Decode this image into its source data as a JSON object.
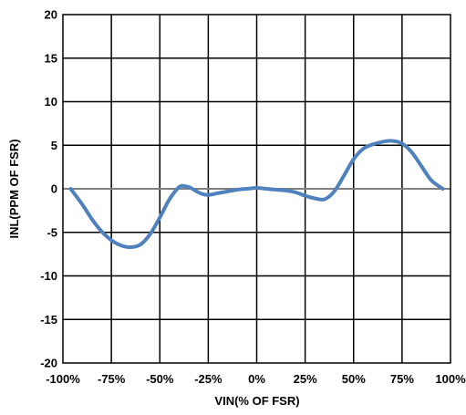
{
  "chart_data": {
    "type": "line",
    "title": "",
    "xlabel": "VIN(% OF FSR)",
    "ylabel": "INL(PPM OF FSR)",
    "xlim": [
      -100,
      100
    ],
    "ylim": [
      -20,
      20
    ],
    "x_ticks": [
      -100,
      -75,
      -50,
      -25,
      0,
      25,
      50,
      75,
      100
    ],
    "x_tick_labels": [
      "-100%",
      "-75%",
      "-50%",
      "-25%",
      "0%",
      "25%",
      "50%",
      "75%",
      "100%"
    ],
    "y_ticks": [
      20,
      15,
      10,
      5,
      0,
      -5,
      -10,
      -15,
      -20
    ],
    "y_tick_labels": [
      "20",
      "15",
      "10",
      "5",
      "0",
      "-5",
      "-10",
      "-15",
      "-20"
    ],
    "grid": true,
    "legend": "none",
    "colors": {
      "series": "#4f81bd",
      "zero_line": "#808080",
      "grid": "#000000"
    },
    "series": [
      {
        "x": [
          -96,
          -90,
          -85,
          -80,
          -75,
          -70,
          -65,
          -60,
          -55,
          -50,
          -45,
          -40,
          -37,
          -34,
          -31,
          -28,
          -25,
          -20,
          -15,
          -10,
          -5,
          0,
          5,
          10,
          15,
          20,
          25,
          30,
          35,
          40,
          45,
          50,
          55,
          60,
          65,
          70,
          75,
          80,
          85,
          90,
          96
        ],
        "y": [
          0,
          -1.8,
          -3.5,
          -4.9,
          -5.9,
          -6.5,
          -6.7,
          -6.4,
          -5.2,
          -3.3,
          -1.2,
          0.2,
          0.3,
          0.1,
          -0.3,
          -0.6,
          -0.7,
          -0.5,
          -0.3,
          -0.1,
          0.0,
          0.1,
          0.0,
          -0.1,
          -0.2,
          -0.4,
          -0.8,
          -1.1,
          -1.2,
          -0.3,
          1.5,
          3.4,
          4.6,
          5.1,
          5.4,
          5.5,
          5.2,
          4.2,
          2.6,
          1.0,
          0
        ]
      }
    ]
  }
}
